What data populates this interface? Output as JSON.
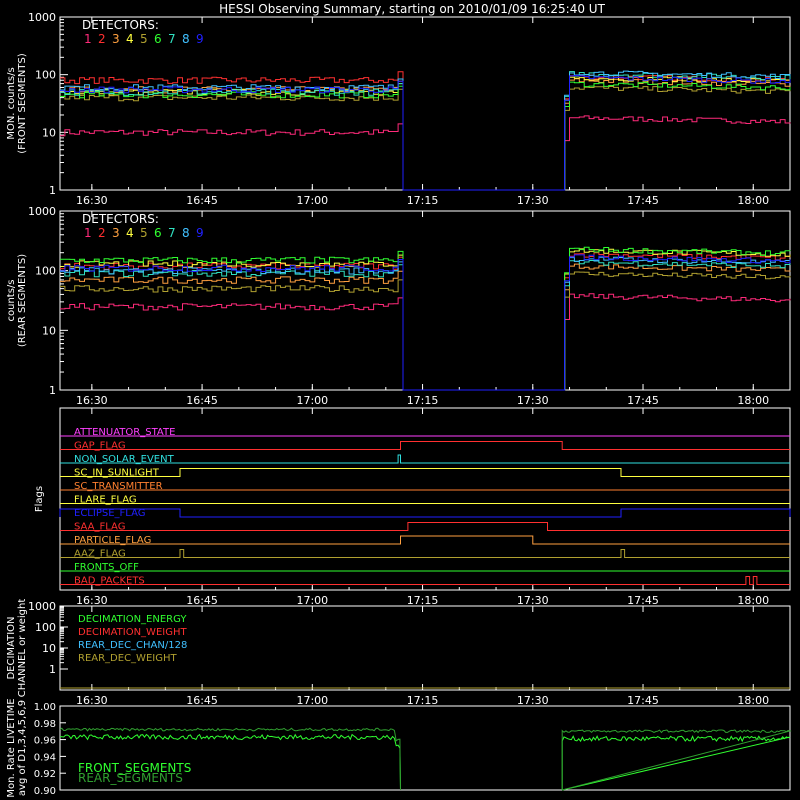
{
  "title": "HESSI Observing Summary, starting on 2010/01/09 16:25:40 UT",
  "colors": {
    "fg": "#ffffff",
    "detectors": [
      "#ff2a7a",
      "#ff3030",
      "#ffa040",
      "#ffff40",
      "#b0a030",
      "#30ff30",
      "#30e0c0",
      "#40c0ff",
      "#2020ff"
    ]
  },
  "chart_data": [
    {
      "type": "line",
      "panel": "front",
      "ylabel": [
        "MON. counts/s",
        "(FRONT SEGMENTS)"
      ],
      "y_scale": "log",
      "ylim": [
        1,
        1000
      ],
      "y_ticks": [
        "1000",
        "100",
        "10",
        "1"
      ],
      "xlim": [
        "16:25:40",
        "18:05:00"
      ],
      "x_ticks": [
        "16:30",
        "16:45",
        "17:00",
        "17:15",
        "17:30",
        "17:45",
        "18:00"
      ],
      "legend_title": "DETECTORS:",
      "legend_labels": [
        "1",
        "2",
        "3",
        "4",
        "5",
        "6",
        "7",
        "8",
        "9"
      ],
      "gap": [
        "17:12",
        "17:34"
      ],
      "series": [
        {
          "name": "1",
          "before": 10,
          "after": 18
        },
        {
          "name": "2",
          "before": 80,
          "after": 95
        },
        {
          "name": "3",
          "before": 55,
          "after": 80
        },
        {
          "name": "4",
          "before": 50,
          "after": 90
        },
        {
          "name": "5",
          "before": 40,
          "after": 60
        },
        {
          "name": "6",
          "before": 45,
          "after": 70
        },
        {
          "name": "7",
          "before": 50,
          "after": 105
        },
        {
          "name": "8",
          "before": 60,
          "after": 110
        },
        {
          "name": "9",
          "before": 55,
          "after": 90
        }
      ]
    },
    {
      "type": "line",
      "panel": "rear",
      "ylabel": [
        "counts/s",
        "(REAR SEGMENTS)"
      ],
      "y_scale": "log",
      "ylim": [
        1,
        1000
      ],
      "y_ticks": [
        "1000",
        "100",
        "10",
        "1"
      ],
      "xlim": [
        "16:25:40",
        "18:05:00"
      ],
      "x_ticks": [
        "16:30",
        "16:45",
        "17:00",
        "17:15",
        "17:30",
        "17:45",
        "18:00"
      ],
      "legend_title": "DETECTORS:",
      "legend_labels": [
        "1",
        "2",
        "3",
        "4",
        "5",
        "6",
        "7",
        "8",
        "9"
      ],
      "gap": [
        "17:12",
        "17:34"
      ],
      "series": [
        {
          "name": "1",
          "before": 25,
          "after": 38
        },
        {
          "name": "2",
          "before": 120,
          "after": 190
        },
        {
          "name": "3",
          "before": 70,
          "after": 120
        },
        {
          "name": "4",
          "before": 130,
          "after": 220
        },
        {
          "name": "5",
          "before": 50,
          "after": 90
        },
        {
          "name": "6",
          "before": 150,
          "after": 230
        },
        {
          "name": "7",
          "before": 90,
          "after": 140
        },
        {
          "name": "8",
          "before": 100,
          "after": 160
        },
        {
          "name": "9",
          "before": 110,
          "after": 170
        }
      ]
    },
    {
      "type": "flags",
      "panel": "flags",
      "ylabel": "Flags",
      "xlim": [
        "16:25:40",
        "18:05:00"
      ],
      "x_ticks": [
        "16:30",
        "16:45",
        "17:00",
        "17:15",
        "17:30",
        "17:45",
        "18:00"
      ],
      "flags": [
        {
          "name": "ATTENUATOR_STATE",
          "color": "#ff40ff",
          "on": []
        },
        {
          "name": "GAP_FLAG",
          "color": "#ff3030",
          "on": [
            [
              "17:12",
              "17:34"
            ]
          ]
        },
        {
          "name": "NON_SOLAR_EVENT",
          "color": "#30e0e0",
          "on": [
            [
              "17:11:40",
              "17:12"
            ]
          ]
        },
        {
          "name": "SC_IN_SUNLIGHT",
          "color": "#ffff40",
          "on": [
            [
              "16:42",
              "17:42"
            ]
          ]
        },
        {
          "name": "SC_TRANSMITTER",
          "color": "#ff8030",
          "on": []
        },
        {
          "name": "FLARE_FLAG",
          "color": "#ffff40",
          "on": []
        },
        {
          "name": "ECLIPSE_FLAG",
          "color": "#2020ff",
          "on": [
            [
              "16:25:40",
              "16:42"
            ],
            [
              "17:42",
              "18:05"
            ]
          ]
        },
        {
          "name": "SAA_FLAG",
          "color": "#ff3030",
          "on": [
            [
              "17:13",
              "17:32"
            ]
          ]
        },
        {
          "name": "PARTICLE_FLAG",
          "color": "#ffa040",
          "on": [
            [
              "17:12",
              "17:30"
            ]
          ]
        },
        {
          "name": "AAZ_FLAG",
          "color": "#b0a030",
          "on": [
            [
              "16:42",
              "16:42:30"
            ],
            [
              "17:42",
              "17:42:30"
            ]
          ]
        },
        {
          "name": "FRONTS_OFF",
          "color": "#30ff30",
          "on": []
        },
        {
          "name": "BAD_PACKETS",
          "color": "#ff3030",
          "on": [
            [
              "17:59",
              "17:59:30"
            ],
            [
              "18:00",
              "18:00:30"
            ]
          ]
        }
      ]
    },
    {
      "type": "line",
      "panel": "decimation",
      "ylabel": [
        "DECIMATION",
        "CHANNEL or weight"
      ],
      "y_scale": "log",
      "ylim": [
        0.1,
        1000
      ],
      "y_ticks": [
        "1000",
        "100",
        "10",
        "1"
      ],
      "xlim": [
        "16:25:40",
        "18:05:00"
      ],
      "x_ticks": [
        "16:30",
        "16:45",
        "17:00",
        "17:15",
        "17:30",
        "17:45",
        "18:00"
      ],
      "legend_labels": [
        "DECIMATION_ENERGY",
        "DECIMATION_WEIGHT",
        "REAR_DEC_CHAN/128",
        "REAR_DEC_WEIGHT"
      ],
      "legend_colors": [
        "#30ff30",
        "#ff3030",
        "#40c0ff",
        "#b0a030"
      ]
    },
    {
      "type": "line",
      "panel": "livetime",
      "ylabel": [
        "Mon. Rate LIVETIME",
        "avg of D1,3,4,5,6,9"
      ],
      "ylim": [
        0.9,
        1.0
      ],
      "y_ticks": [
        "1.00",
        "0.98",
        "0.96",
        "0.94",
        "0.92",
        "0.90"
      ],
      "xlim": [
        "16:25:40",
        "18:05:00"
      ],
      "gap": [
        "17:12",
        "17:34"
      ],
      "series": [
        {
          "name": "FRONT_SEGMENTS",
          "color": "#30ff30",
          "before": 0.963,
          "after": 0.961
        },
        {
          "name": "REAR_SEGMENTS",
          "color": "#30a030",
          "before": 0.972,
          "after": 0.97
        }
      ]
    }
  ]
}
